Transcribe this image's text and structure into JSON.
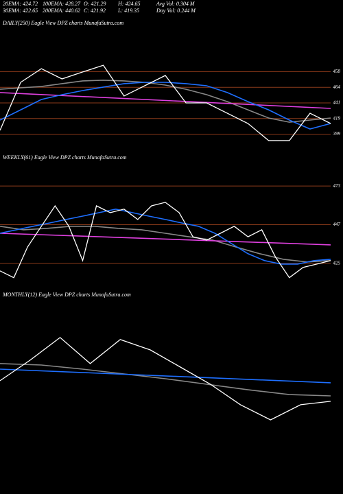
{
  "header": {
    "rows": [
      [
        "20EMA: 424.72",
        "100EMA: 428.27",
        "O: 421.29",
        "H: 424.65",
        "Avg Vol: 0.304 M"
      ],
      [
        "30EMA: 422.65",
        "200EMA: 440.62",
        "C: 421.92",
        "L: 419.35",
        "Day Vol: 0.244  M"
      ]
    ]
  },
  "chart_data": [
    {
      "type": "line",
      "title": "DAILY(250) Eagle   View  DPZ charts MunafaSutra.com",
      "levels": [
        "458",
        "464",
        "441",
        "419",
        "399"
      ],
      "ylim": [
        395,
        470
      ],
      "series": [
        {
          "color": "#888888",
          "values": [
            444.0,
            445.2,
            446.3,
            448.7,
            451.0,
            451.6,
            451.0,
            449.8,
            447.5,
            444.0,
            439.4,
            433.6,
            426.7,
            419.8,
            416.3,
            418.1,
            419.8
          ]
        },
        {
          "color": "#e040e0",
          "values": [
            441.2,
            427.9
          ]
        },
        {
          "color": "#1e6fff",
          "values": [
            418.1,
            426.7,
            435.4,
            439.4,
            442.9,
            445.8,
            448.7,
            449.8,
            449.8,
            448.7,
            446.9,
            441.2,
            433.6,
            426.7,
            418.1,
            410.6,
            415.2
          ]
        },
        {
          "color": "#ffffff",
          "values": [
            409.4,
            449.8,
            461.3,
            452.7,
            458.5,
            464.2,
            438.3,
            446.9,
            455.6,
            432.5,
            432.5,
            423.8,
            415.2,
            400.8,
            400.8,
            423.8,
            415.2
          ]
        }
      ]
    },
    {
      "type": "line",
      "title": "WEEKLY(61) Eagle   View  DPZ charts MunafaSutra.com",
      "levels": [
        "473",
        "447",
        "425"
      ],
      "ylim": [
        410,
        490
      ],
      "series": [
        {
          "color": "#888888",
          "values": [
            449.0,
            446.8,
            447.7,
            449.0,
            449.0,
            447.7,
            446.8,
            444.6,
            442.4,
            440.3,
            435.9,
            431.7,
            428.2,
            426.5,
            427.4
          ]
        },
        {
          "color": "#e040e0",
          "values": [
            444.6,
            437.3
          ]
        },
        {
          "color": "#1e6fff",
          "values": [
            444.6,
            446.8,
            449.0,
            451.1,
            453.3,
            455.4,
            457.6,
            459.8,
            457.6,
            455.4,
            453.3,
            451.1,
            449.0,
            444.6,
            438.1,
            431.7,
            427.4,
            425.2,
            425.2,
            427.4,
            428.2
          ]
        },
        {
          "color": "#ffffff",
          "values": [
            420.9,
            416.6,
            436.0,
            449.0,
            461.9,
            449.0,
            427.4,
            461.9,
            457.6,
            459.8,
            453.3,
            461.9,
            464.1,
            457.6,
            442.4,
            440.3,
            444.6,
            449.0,
            442.4,
            446.8,
            429.5,
            416.6,
            423.1,
            425.2,
            427.4
          ]
        }
      ]
    },
    {
      "type": "line",
      "title": "MONTHLY(12) Eagle   View  DPZ charts MunafaSutra.com",
      "levels": [],
      "ylim": [
        380,
        500
      ],
      "series": [
        {
          "color": "#888888",
          "values": [
            442.9,
            441.7,
            438.3,
            434.3,
            430.3,
            425.7,
            421.1,
            417.1,
            416.0
          ]
        },
        {
          "color": "#1e6fff",
          "values": [
            438.3,
            426.9
          ]
        },
        {
          "color": "#ffffff",
          "values": [
            428.6,
            445.7,
            464.6,
            442.9,
            462.9,
            454.3,
            440.0,
            425.7,
            408.6,
            396.0,
            408.6,
            411.5
          ]
        }
      ]
    }
  ]
}
